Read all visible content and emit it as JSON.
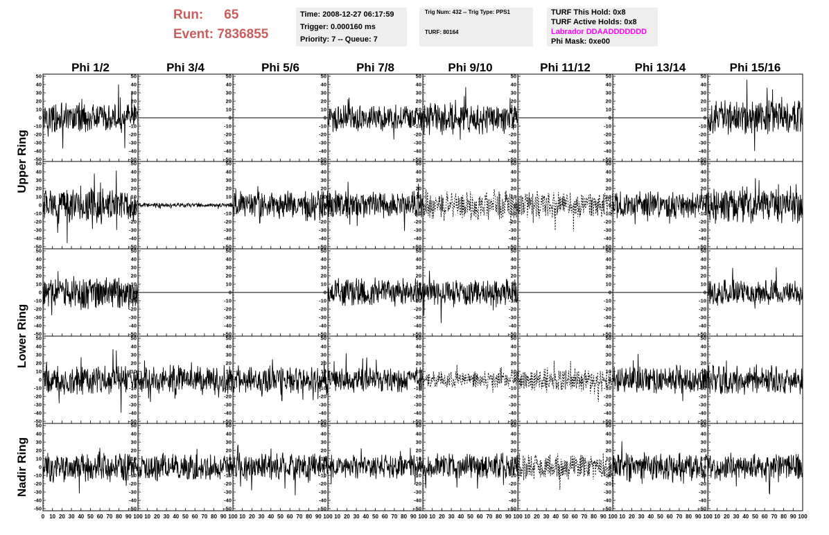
{
  "header": {
    "run_label": "Run:",
    "run_value": "65",
    "event_label": "Event:",
    "event_value": "7836855",
    "time": "Time: 2008-12-27 06:17:59",
    "trigger": "Trigger: 0.000160 ms",
    "priority": "Priority: 7 -- Queue: 7",
    "trig_num": "Trig Num: 432 -- Trig Type: PPS1",
    "turf": "TURF: 80164",
    "turf_hold": "TURF This Hold: 0x8",
    "turf_active": "TURF Active Holds: 0x8",
    "labrador": "Labrador DDAADDDDDDD",
    "phi_mask": "Phi Mask: 0xe00"
  },
  "colors": {
    "run_text": "#cd5c5c",
    "labrador": "#ff00ff",
    "info_bg": "#eeeeee",
    "trace": "#000000"
  },
  "chart_data": {
    "type": "line",
    "title": "",
    "columns": [
      "Phi 1/2",
      "Phi 3/4",
      "Phi 5/6",
      "Phi 7/8",
      "Phi 9/10",
      "Phi 11/12",
      "Phi 13/14",
      "Phi 15/16"
    ],
    "row_labels": [
      "Upper Ring",
      "Lower Ring",
      "Nadir Ring"
    ],
    "xlim": [
      0,
      100
    ],
    "ylim": [
      -50,
      50
    ],
    "y_ticks": [
      50,
      40,
      30,
      20,
      10,
      0,
      -10,
      -20,
      -30,
      -40,
      -50
    ],
    "x_ticks": [
      0,
      10,
      20,
      30,
      40,
      50,
      60,
      70,
      80,
      90,
      100
    ],
    "grid": false,
    "panels": [
      [
        {
          "amp": 14,
          "style": "solid"
        },
        {
          "amp": 0,
          "style": "solid"
        },
        {
          "amp": 0,
          "style": "solid"
        },
        {
          "amp": 13,
          "style": "solid"
        },
        {
          "amp": 16,
          "style": "solid"
        },
        {
          "amp": 0,
          "style": "solid"
        },
        {
          "amp": 0,
          "style": "solid"
        },
        {
          "amp": 16,
          "style": "solid"
        }
      ],
      [
        {
          "amp": 17,
          "style": "solid"
        },
        {
          "amp": 2,
          "style": "solid"
        },
        {
          "amp": 14,
          "style": "solid"
        },
        {
          "amp": 13,
          "style": "solid"
        },
        {
          "amp": 14,
          "style": "dashed"
        },
        {
          "amp": 13,
          "style": "dashed"
        },
        {
          "amp": 13,
          "style": "solid"
        },
        {
          "amp": 17,
          "style": "solid"
        }
      ],
      [
        {
          "amp": 15,
          "style": "solid"
        },
        {
          "amp": 0,
          "style": "solid"
        },
        {
          "amp": 0,
          "style": "solid"
        },
        {
          "amp": 13,
          "style": "solid"
        },
        {
          "amp": 13,
          "style": "solid"
        },
        {
          "amp": 0,
          "style": "solid"
        },
        {
          "amp": 0,
          "style": "solid"
        },
        {
          "amp": 12,
          "style": "solid"
        }
      ],
      [
        {
          "amp": 14,
          "style": "solid"
        },
        {
          "amp": 14,
          "style": "solid"
        },
        {
          "amp": 13,
          "style": "solid"
        },
        {
          "amp": 12,
          "style": "solid"
        },
        {
          "amp": 8,
          "style": "dashed"
        },
        {
          "amp": 11,
          "style": "dashed"
        },
        {
          "amp": 13,
          "style": "solid"
        },
        {
          "amp": 14,
          "style": "solid"
        }
      ],
      [
        {
          "amp": 14,
          "style": "solid"
        },
        {
          "amp": 13,
          "style": "solid"
        },
        {
          "amp": 13,
          "style": "solid"
        },
        {
          "amp": 11,
          "style": "solid"
        },
        {
          "amp": 13,
          "style": "solid"
        },
        {
          "amp": 13,
          "style": "dashed"
        },
        {
          "amp": 14,
          "style": "solid"
        },
        {
          "amp": 13,
          "style": "solid"
        }
      ]
    ]
  }
}
